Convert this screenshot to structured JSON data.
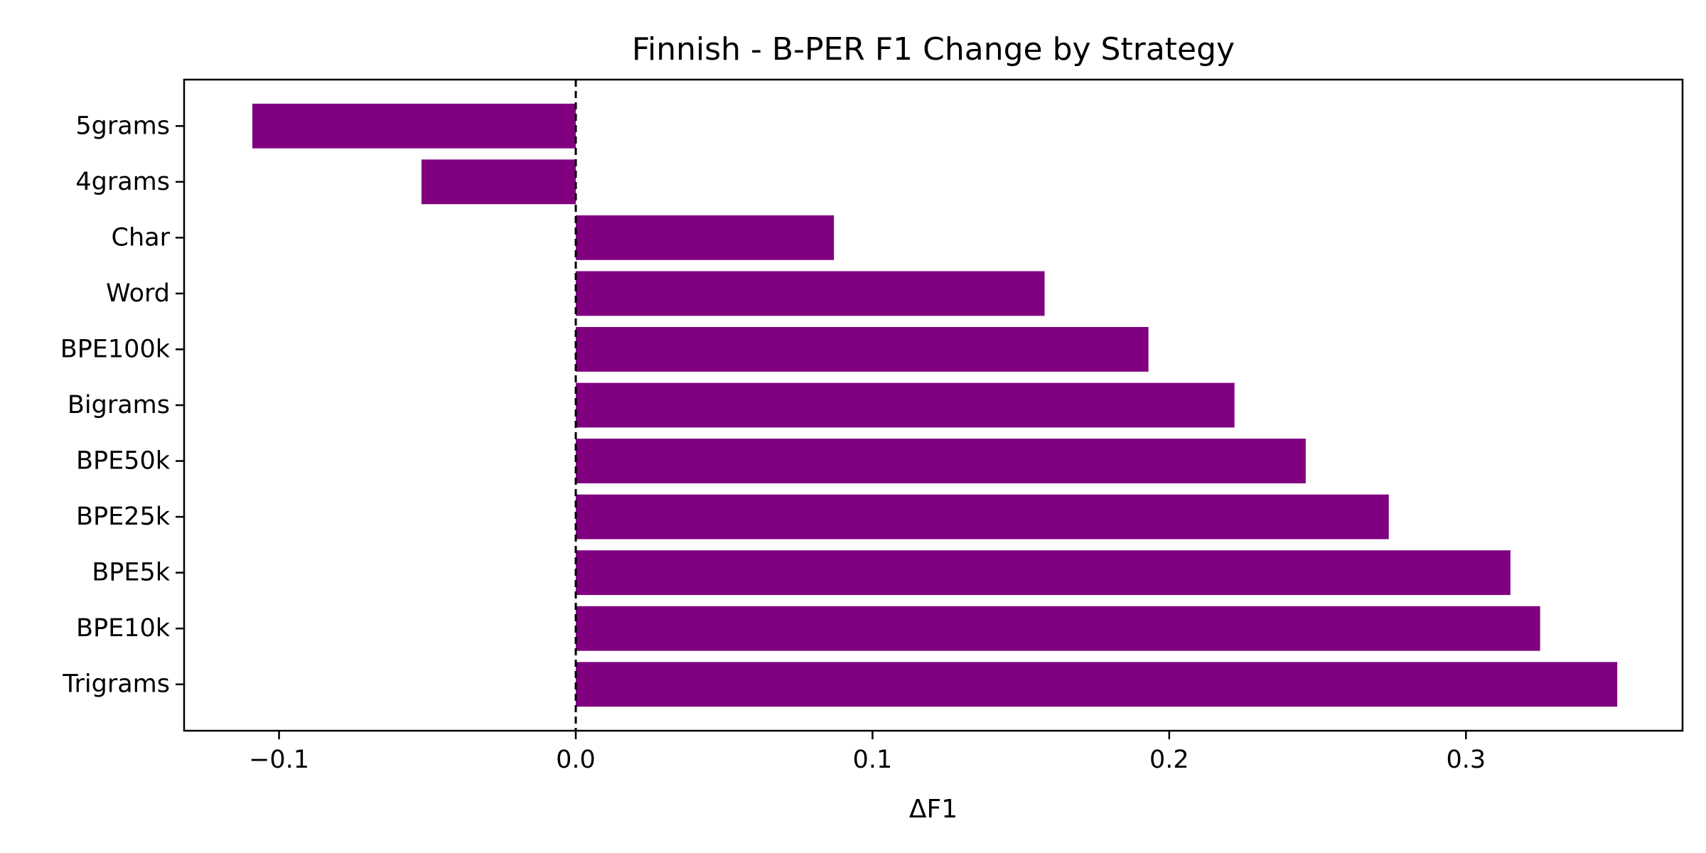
{
  "chart_data": {
    "type": "bar",
    "orientation": "horizontal",
    "title": "Finnish - B-PER F1 Change by Strategy",
    "xlabel": "ΔF1",
    "ylabel": "",
    "categories": [
      "5grams",
      "4grams",
      "Char",
      "Word",
      "BPE100k",
      "Bigrams",
      "BPE50k",
      "BPE25k",
      "BPE5k",
      "BPE10k",
      "Trigrams"
    ],
    "values": [
      -0.109,
      -0.052,
      0.087,
      0.158,
      0.193,
      0.222,
      0.246,
      0.274,
      0.315,
      0.325,
      0.351
    ],
    "xlim": [
      -0.132,
      0.373
    ],
    "xticks": [
      -0.1,
      0.0,
      0.1,
      0.2,
      0.3
    ],
    "xtick_labels": [
      "−0.1",
      "0.0",
      "0.1",
      "0.2",
      "0.3"
    ],
    "reference_line": {
      "x": 0,
      "style": "dashed",
      "color": "#000000"
    },
    "grid": false,
    "legend": "none",
    "bar_color": "#800080"
  }
}
